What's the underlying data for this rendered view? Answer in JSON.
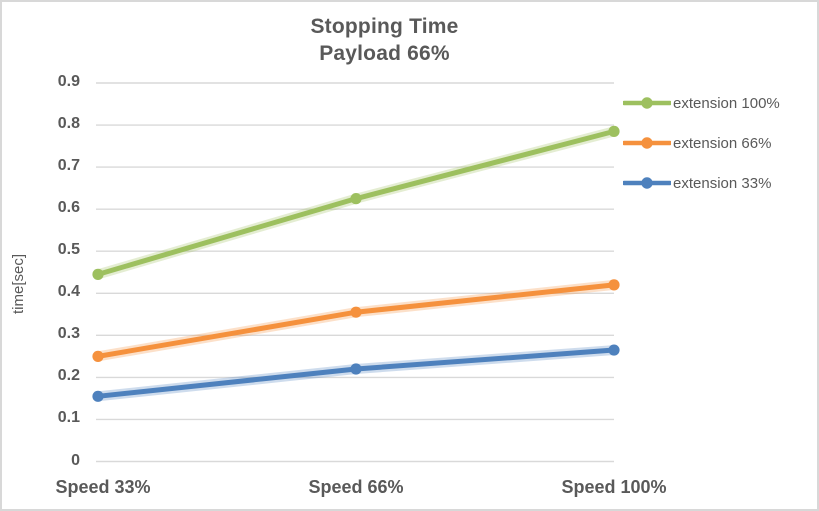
{
  "chart_data": {
    "type": "line",
    "title": "Stopping Time",
    "subtitle": "Payload 66%",
    "ylabel": "time[sec]",
    "xlabel": "",
    "categories": [
      "Speed 33%",
      "Speed 66%",
      "Speed 100%"
    ],
    "series": [
      {
        "name": "extension 100%",
        "color": "#9dc05f",
        "values": [
          0.445,
          0.625,
          0.785
        ]
      },
      {
        "name": "extension 66%",
        "color": "#f5913d",
        "values": [
          0.25,
          0.355,
          0.42
        ]
      },
      {
        "name": "extension 33%",
        "color": "#4e81bd",
        "values": [
          0.155,
          0.22,
          0.265
        ]
      }
    ],
    "ylim": [
      0,
      0.9
    ],
    "ytick_labels": [
      "0",
      "0.1",
      "0.2",
      "0.3",
      "0.4",
      "0.5",
      "0.6",
      "0.7",
      "0.8",
      "0.9"
    ],
    "grid": true,
    "legend_position": "right"
  },
  "styles": {
    "text_color": "#595959",
    "grid_color": "#d9d9d9",
    "background": "#ffffff",
    "border_color": "#d8d8d8"
  }
}
